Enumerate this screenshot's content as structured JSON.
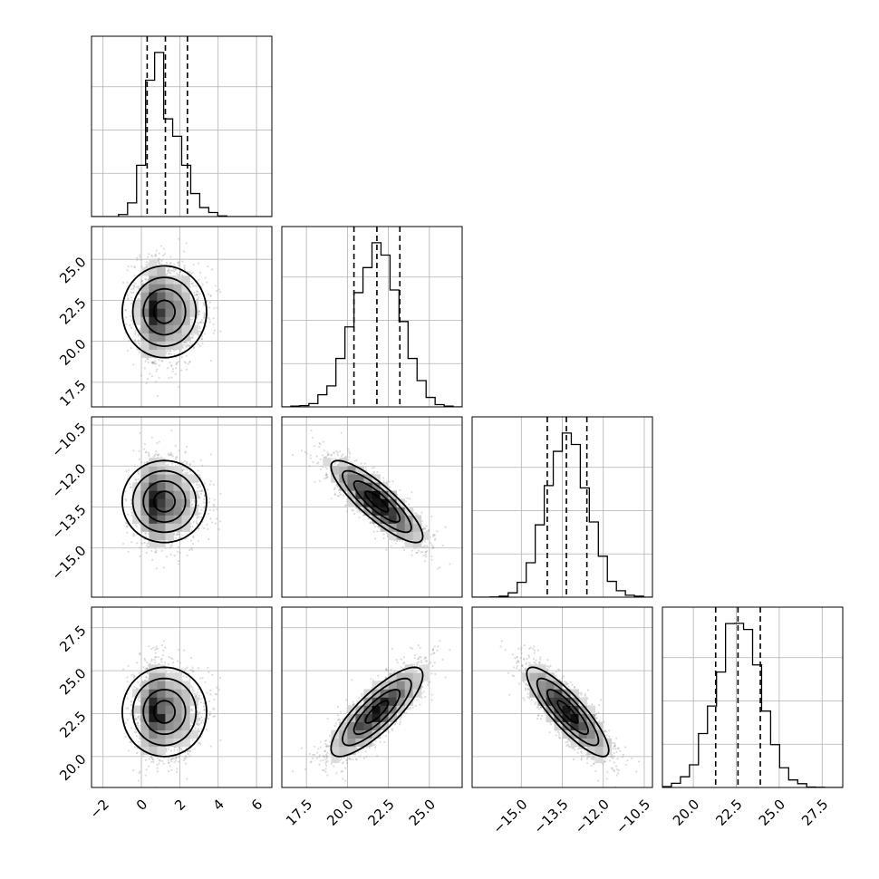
{
  "chart_data": {
    "type": "corner",
    "title": "",
    "colors": {
      "line": "#000000",
      "grid": "#b0b0b0",
      "points": "#9a9a9a"
    },
    "grid": true,
    "parameters": [
      {
        "index": 0,
        "label": "",
        "range": [
          -2.6,
          6.8
        ],
        "center": 1.2,
        "sigma": 1.1,
        "skew": 0.6,
        "quantiles": [
          0.3,
          1.25,
          2.4
        ],
        "ticks": [
          -2,
          0,
          2,
          4,
          6
        ],
        "tick_labels": [
          "−2",
          "0",
          "2",
          "4",
          "6"
        ]
      },
      {
        "index": 1,
        "label": "",
        "range": [
          16.0,
          27.0
        ],
        "center": 21.8,
        "sigma": 1.4,
        "skew": 0.0,
        "quantiles": [
          20.4,
          21.8,
          23.2
        ],
        "ticks": [
          17.5,
          20.0,
          22.5,
          25.0
        ],
        "tick_labels": [
          "17.5",
          "20.0",
          "22.5",
          "25.0"
        ]
      },
      {
        "index": 2,
        "label": "",
        "range": [
          -16.8,
          -10.2
        ],
        "center": -13.3,
        "sigma": 0.75,
        "skew": 0.0,
        "quantiles": [
          -14.05,
          -13.35,
          -12.6
        ],
        "ticks": [
          -15.0,
          -13.5,
          -12.0,
          -10.5
        ],
        "tick_labels": [
          "−15.0",
          "−13.5",
          "−12.0",
          "−10.5"
        ]
      },
      {
        "index": 3,
        "label": "",
        "range": [
          18.2,
          28.7
        ],
        "center": 22.6,
        "sigma": 1.3,
        "skew": 0.0,
        "quantiles": [
          21.3,
          22.6,
          23.9
        ],
        "ticks": [
          20.0,
          22.5,
          25.0,
          27.5
        ],
        "tick_labels": [
          "20.0",
          "22.5",
          "25.0",
          "27.5"
        ]
      }
    ],
    "correlations": [
      {
        "x": 0,
        "y": 1,
        "rho": 0.0
      },
      {
        "x": 0,
        "y": 2,
        "rho": 0.0
      },
      {
        "x": 1,
        "y": 2,
        "rho": -0.85
      },
      {
        "x": 0,
        "y": 3,
        "rho": 0.0
      },
      {
        "x": 1,
        "y": 3,
        "rho": 0.82
      },
      {
        "x": 2,
        "y": 3,
        "rho": -0.86
      }
    ]
  }
}
